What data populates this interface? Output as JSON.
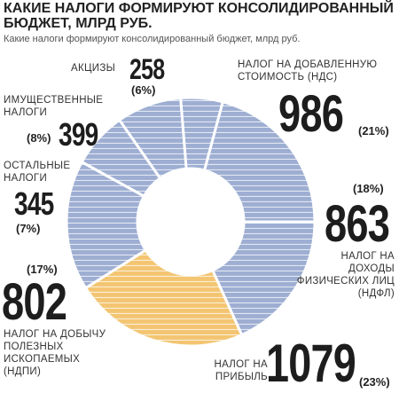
{
  "chart_data": {
    "type": "donut",
    "title": "КАКИЕ НАЛОГИ ФОРМИРУЮТ КОНСОЛИДИРОВАННЫЙ БЮДЖЕТ, МЛРД РУБ.",
    "subtitle": "Какие налоги формируют консолидированный бюджет, млрд руб.",
    "categories": [
      "НАЛОГ НА ДОБАВЛЕННУЮ СТОИМОСТЬ (НДС)",
      "НАЛОГ НА ДОХОДЫ ФИЗИЧЕСКИХ ЛИЦ (НДФЛ)",
      "НАЛОГ НА ПРИБЫЛЬ",
      "НАЛОГ НА ДОБЫЧУ ПОЛЕЗНЫХ ИСКОПАЕМЫХ (НДПИ)",
      "ОСТАЛЬНЫЕ НАЛОГИ",
      "ИМУЩЕСТВЕННЫЕ НАЛОГИ",
      "АКЦИЗЫ"
    ],
    "values": [
      986,
      863,
      1079,
      802,
      345,
      399,
      258
    ],
    "shares": [
      "(21%)",
      "(18%)",
      "(23%)",
      "(17%)",
      "(7%)",
      "(8%)",
      "(6%)"
    ],
    "colors": [
      "#9eaed2",
      "#9eaed2",
      "#f3c572",
      "#9eaed2",
      "#9eaed2",
      "#9eaed2",
      "#9eaed2"
    ]
  }
}
